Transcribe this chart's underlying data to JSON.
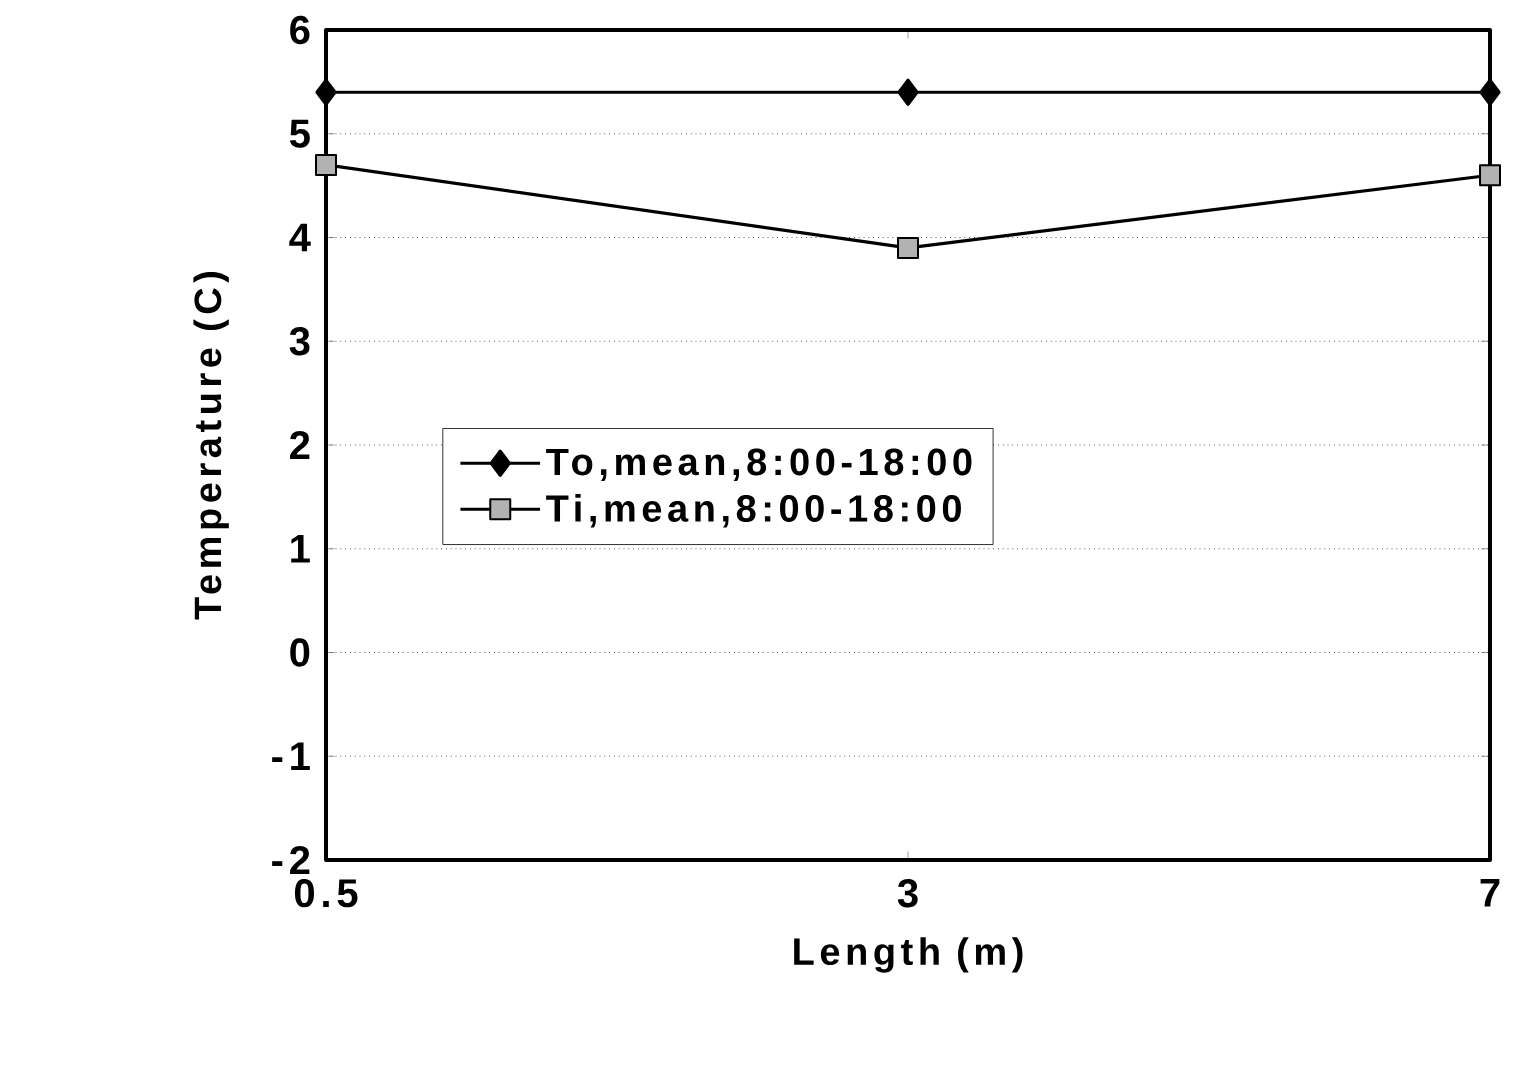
{
  "chart_data": {
    "type": "line",
    "xlabel": "Length (m)",
    "ylabel": "Temperature (C)",
    "categories": [
      "0.5",
      "3",
      "7"
    ],
    "series": [
      {
        "name": "To,mean,8:00-18:00",
        "color": "#000000",
        "marker": "diamond",
        "values": [
          5.4,
          5.4,
          5.4
        ]
      },
      {
        "name": "Ti,mean,8:00-18:00",
        "color": "#000000",
        "marker": "square",
        "values": [
          4.7,
          3.9,
          4.6
        ]
      }
    ],
    "ylim": [
      -2,
      6
    ],
    "yticks": [
      -2,
      -1,
      0,
      1,
      2,
      3,
      4,
      5,
      6
    ],
    "grid": "y",
    "legend": "left",
    "line_style": "solid"
  }
}
